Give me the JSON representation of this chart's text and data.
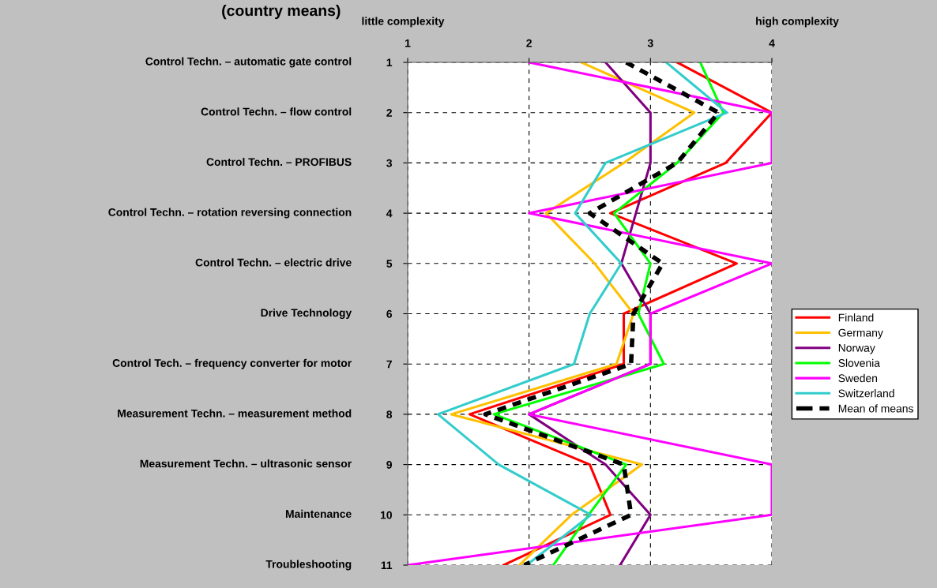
{
  "chart_data": {
    "type": "line",
    "orientation": "horizontal",
    "title": "(country means)",
    "categories": [
      "Control Techn. – automatic gate control",
      "Control Techn. – flow control",
      "Control Techn. – PROFIBUS",
      "Control Techn. – rotation reversing connection",
      "Control Techn. – electric drive",
      "Drive Technology",
      "Control Tech. – frequency converter for motor",
      "Measurement Techn. – measurement method",
      "Measurement Techn. – ultrasonic sensor",
      "Maintenance",
      "Troubleshooting"
    ],
    "y2_categories": [
      "1",
      "2",
      "3",
      "4",
      "5",
      "6",
      "7",
      "8",
      "9",
      "10",
      "11"
    ],
    "xlim": [
      1,
      4
    ],
    "xticks": [
      1,
      2,
      3,
      4
    ],
    "annotations": [
      "little complexity",
      "high complexity"
    ],
    "series": [
      {
        "name": "Finland",
        "color": "#ff0000",
        "values": [
          3.22,
          4.0,
          3.62,
          2.67,
          3.71,
          2.78,
          2.78,
          1.51,
          2.5,
          2.67,
          1.79
        ]
      },
      {
        "name": "Germany",
        "color": "#ffc000",
        "values": [
          2.43,
          3.36,
          2.78,
          2.14,
          2.54,
          2.86,
          2.72,
          1.36,
          2.93,
          2.35,
          1.92
        ]
      },
      {
        "name": "Norway",
        "color": "#800080",
        "values": [
          2.63,
          3.0,
          3.0,
          2.88,
          2.76,
          3.0,
          3.0,
          2.0,
          2.63,
          3.0,
          2.75
        ]
      },
      {
        "name": "Slovenia",
        "color": "#00ff00",
        "values": [
          3.41,
          3.6,
          3.22,
          2.7,
          3.0,
          2.9,
          3.11,
          1.71,
          2.8,
          2.49,
          2.2
        ]
      },
      {
        "name": "Sweden",
        "color": "#ff00ff",
        "values": [
          2.0,
          4.0,
          4.0,
          2.0,
          4.0,
          3.0,
          3.0,
          2.0,
          4.0,
          4.0,
          1.0
        ]
      },
      {
        "name": "Switzerland",
        "color": "#33cccc",
        "values": [
          3.13,
          3.63,
          2.63,
          2.38,
          2.76,
          2.5,
          2.37,
          1.25,
          1.75,
          2.51,
          1.98
        ]
      },
      {
        "name": "Mean of means",
        "color": "#000000",
        "line_style": "dashed",
        "values": [
          2.8,
          3.56,
          3.22,
          2.5,
          3.1,
          2.86,
          2.84,
          1.64,
          2.78,
          2.84,
          1.96
        ]
      }
    ],
    "grid": true,
    "legend": "right",
    "line_style": "solid",
    "marker": "none"
  }
}
